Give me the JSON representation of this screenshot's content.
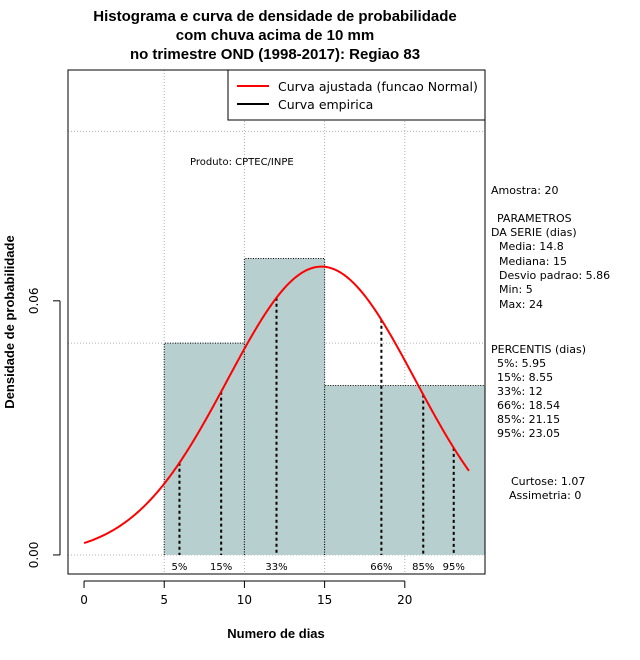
{
  "chart_data": {
    "type": "histogram",
    "title_lines": [
      "Histograma e curva de densidade de probabilidade",
      "com chuva acima de 10 mm",
      "no trimestre OND (1998-2017): Regiao 83"
    ],
    "xlabel": "Numero de dias",
    "ylabel": "Densidade de probabilidade",
    "xlim": [
      -1,
      25
    ],
    "ylim": [
      -0.0045,
      0.1145
    ],
    "x_ticks": [
      0,
      5,
      10,
      15,
      20
    ],
    "x_tick_labels": [
      "0",
      "5",
      "10",
      "15",
      "20"
    ],
    "y_ticks": [
      0,
      0.06
    ],
    "y_tick_labels": [
      "0.00",
      "0.06"
    ],
    "grid_x": [
      5,
      10,
      15,
      20
    ],
    "grid_y": [
      0.05,
      0.1
    ],
    "bins": [
      {
        "start": 5,
        "end": 10,
        "density": 0.05
      },
      {
        "start": 10,
        "end": 15,
        "density": 0.07
      },
      {
        "start": 15,
        "end": 25,
        "density": 0.04
      }
    ],
    "normal_fit": {
      "mean": 14.8,
      "sd": 5.86,
      "x_range": [
        0,
        24
      ]
    },
    "percentile_lines": [
      {
        "label": "5%",
        "value": 5.95
      },
      {
        "label": "15%",
        "value": 8.55
      },
      {
        "label": "33%",
        "value": 12
      },
      {
        "label": "66%",
        "value": 18.54
      },
      {
        "label": "85%",
        "value": 21.15
      },
      {
        "label": "95%",
        "value": 23.05
      }
    ],
    "legend": {
      "position": "top-right",
      "entries": [
        {
          "label": "Curva ajustada (funcao Normal)",
          "color": "#ff0000"
        },
        {
          "label": "Curva empirica",
          "color": "#000000"
        }
      ]
    },
    "source_note": "Produto: CPTEC/INPE",
    "colors": {
      "bar_fill": "#b8cfcf",
      "bar_stroke": "#000000",
      "curve": "#ff0000",
      "grid": "#b0b0b0"
    }
  },
  "stats_panel": {
    "sample": "Amostra: 20",
    "params_title": "PARAMETROS",
    "params_subtitle": "DA SERIE (dias)",
    "params": [
      "Media: 14.8",
      "Mediana: 15",
      "Desvio padrao: 5.86",
      "Min: 5",
      "Max: 24"
    ],
    "percentis_title": "PERCENTIS (dias)",
    "percentis": [
      "5%: 5.95",
      "15%: 8.55",
      "33%: 12",
      "66%: 18.54",
      "85%: 21.15",
      "95%: 23.05"
    ],
    "curtose": "Curtose: 1.07",
    "assimetria": "Assimetria: 0"
  }
}
